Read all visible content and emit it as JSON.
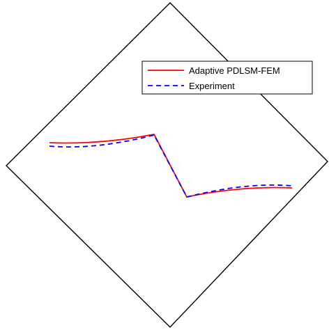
{
  "legend": {
    "entries": [
      {
        "name": "Adaptive PDLSM-FEM",
        "color": "#ff0000",
        "style": "solid"
      },
      {
        "name": "Experiment",
        "color": "#0000ff",
        "style": "dashed"
      }
    ]
  },
  "colors": {
    "outline": "#000000",
    "background": "#ffffff"
  }
}
